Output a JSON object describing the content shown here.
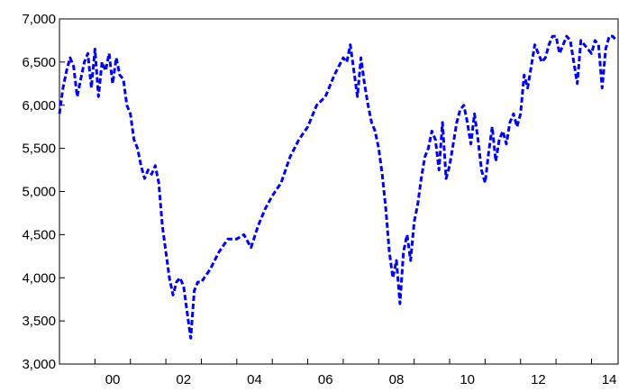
{
  "chart_data": {
    "type": "line",
    "line_style": "dashed",
    "title": "",
    "xlabel": "",
    "ylabel": "",
    "grid": false,
    "legend": "none",
    "x_tick_labels": [
      "00",
      "02",
      "04",
      "06",
      "08",
      "10",
      "12",
      "14"
    ],
    "x_tick_years": [
      2000,
      2002,
      2004,
      2006,
      2008,
      2010,
      2012,
      2014
    ],
    "xlim": [
      1999.0,
      2014.75
    ],
    "ylim": [
      3000,
      7000
    ],
    "y_ticks": [
      3000,
      3500,
      4000,
      4500,
      5000,
      5500,
      6000,
      6500,
      7000
    ],
    "y_tick_labels": [
      "3,000",
      "3,500",
      "4,000",
      "4,500",
      "5,000",
      "5,500",
      "6,000",
      "6,500",
      "7,000"
    ],
    "series": [
      {
        "color": "#0000ff",
        "x": [
          1999.0,
          1999.1,
          1999.2,
          1999.3,
          1999.4,
          1999.5,
          1999.6,
          1999.7,
          1999.8,
          1999.9,
          2000.0,
          2000.1,
          2000.2,
          2000.3,
          2000.4,
          2000.5,
          2000.6,
          2000.7,
          2000.8,
          2000.9,
          2001.0,
          2001.1,
          2001.2,
          2001.3,
          2001.4,
          2001.5,
          2001.6,
          2001.7,
          2001.8,
          2001.9,
          2002.0,
          2002.1,
          2002.2,
          2002.3,
          2002.4,
          2002.5,
          2002.6,
          2002.7,
          2002.8,
          2002.9,
          2003.0,
          2003.25,
          2003.5,
          2003.75,
          2004.0,
          2004.2,
          2004.4,
          2004.6,
          2004.8,
          2005.0,
          2005.25,
          2005.5,
          2005.75,
          2006.0,
          2006.25,
          2006.5,
          2006.75,
          2007.0,
          2007.1,
          2007.2,
          2007.3,
          2007.4,
          2007.5,
          2007.6,
          2007.7,
          2007.8,
          2007.9,
          2008.0,
          2008.1,
          2008.2,
          2008.3,
          2008.4,
          2008.5,
          2008.6,
          2008.7,
          2008.8,
          2008.9,
          2009.0,
          2009.1,
          2009.2,
          2009.3,
          2009.4,
          2009.5,
          2009.6,
          2009.7,
          2009.8,
          2009.9,
          2010.0,
          2010.1,
          2010.2,
          2010.3,
          2010.4,
          2010.5,
          2010.6,
          2010.7,
          2010.8,
          2010.9,
          2011.0,
          2011.1,
          2011.2,
          2011.3,
          2011.4,
          2011.5,
          2011.6,
          2011.7,
          2011.8,
          2011.9,
          2012.0,
          2012.1,
          2012.2,
          2012.3,
          2012.4,
          2012.5,
          2012.6,
          2012.7,
          2012.8,
          2012.9,
          2013.0,
          2013.1,
          2013.2,
          2013.3,
          2013.4,
          2013.5,
          2013.6,
          2013.7,
          2013.8,
          2013.9,
          2014.0,
          2014.1,
          2014.2,
          2014.3,
          2014.4,
          2014.5,
          2014.6,
          2014.7
        ],
        "y": [
          5900,
          6200,
          6400,
          6550,
          6450,
          6100,
          6300,
          6500,
          6600,
          6200,
          6650,
          6100,
          6500,
          6400,
          6600,
          6250,
          6550,
          6350,
          6300,
          6000,
          5900,
          5600,
          5500,
          5300,
          5150,
          5250,
          5200,
          5300,
          5100,
          4600,
          4300,
          4000,
          3800,
          3950,
          4000,
          3900,
          3600,
          3300,
          3850,
          3950,
          3950,
          4100,
          4300,
          4450,
          4450,
          4500,
          4350,
          4600,
          4800,
          4950,
          5100,
          5400,
          5600,
          5750,
          6000,
          6100,
          6350,
          6550,
          6500,
          6700,
          6400,
          6100,
          6550,
          6250,
          6000,
          5800,
          5700,
          5500,
          5200,
          4800,
          4300,
          4000,
          4200,
          3700,
          4300,
          4500,
          4200,
          4650,
          4850,
          5150,
          5400,
          5500,
          5700,
          5600,
          5250,
          5800,
          5150,
          5300,
          5550,
          5800,
          5950,
          6000,
          5800,
          5550,
          5900,
          5600,
          5250,
          5100,
          5450,
          5750,
          5350,
          5600,
          5700,
          5550,
          5800,
          5900,
          5750,
          5900,
          6350,
          6200,
          6450,
          6700,
          6600,
          6500,
          6550,
          6700,
          6800,
          6800,
          6600,
          6700,
          6800,
          6750,
          6500,
          6250,
          6750,
          6700,
          6650,
          6600,
          6750,
          6700,
          6200,
          6650,
          6800,
          6800,
          6750
        ]
      }
    ]
  }
}
